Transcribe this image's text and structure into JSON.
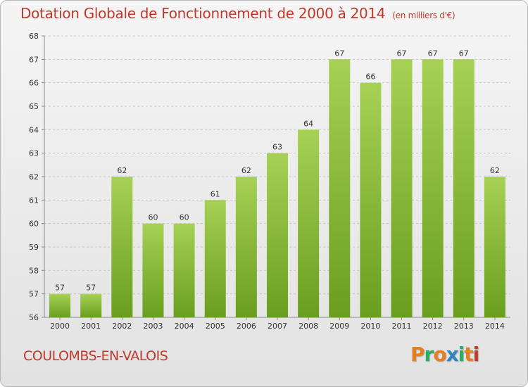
{
  "header": {
    "title": "Dotation Globale de Fonctionnement de 2000 à 2014",
    "unit": "(en milliers d'€)"
  },
  "footer": {
    "commune": "COULOMBS-EN-VALOIS",
    "logo_letters": [
      "P",
      "r",
      "o",
      "x",
      "i",
      "t",
      "i"
    ],
    "logo_colors": [
      "#e67e22",
      "#27ae60",
      "#e67e22",
      "#2e86c1",
      "#27ae60",
      "#e67e22",
      "#c0392b"
    ]
  },
  "chart_data": {
    "type": "bar",
    "title": "Dotation Globale de Fonctionnement de 2000 à 2014",
    "subtitle": "(en milliers d'€)",
    "categories": [
      "2000",
      "2001",
      "2002",
      "2003",
      "2004",
      "2005",
      "2006",
      "2007",
      "2008",
      "2009",
      "2010",
      "2011",
      "2012",
      "2013",
      "2014"
    ],
    "values": [
      57,
      57,
      62,
      60,
      60,
      61,
      62,
      63,
      64,
      67,
      66,
      67,
      67,
      67,
      62
    ],
    "ylim": [
      56,
      68
    ],
    "yticks": [
      56,
      57,
      58,
      59,
      60,
      61,
      62,
      63,
      64,
      65,
      66,
      67,
      68
    ],
    "grid": true,
    "bar_color_top": "#a6d155",
    "bar_color_bottom": "#6a9e1f"
  }
}
